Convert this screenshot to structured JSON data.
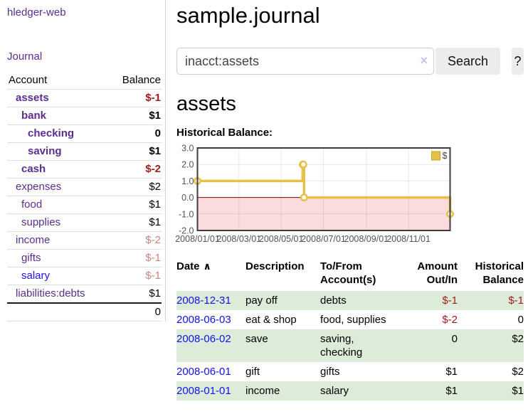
{
  "app": {
    "brand": "hledger-web",
    "nav_journal": "Journal"
  },
  "header": {
    "title": "sample.journal"
  },
  "search": {
    "value": "inacct:assets",
    "clear_icon": "×",
    "button_label": "Search",
    "help_label": "?"
  },
  "main": {
    "account_heading": "assets",
    "chart_label": "Historical Balance:"
  },
  "colors": {
    "link_purple": "#5b2d90",
    "link_blue": "#1212e6",
    "negative_red": "#a11c1c",
    "negative_soft_red": "#c98484",
    "row_stripe_green": "#ddecd9",
    "chart_line_gold": "#e6c149",
    "chart_negative_pink": "#fbdcdc",
    "chart_zero_line": "#8b0000"
  },
  "sidebar": {
    "accounts": {
      "headers": {
        "account": "Account",
        "balance": "Balance"
      },
      "rows": [
        {
          "name": "assets",
          "depth_class": "d1",
          "balance": "$-1",
          "emphasis": true,
          "negative": true
        },
        {
          "name": "bank",
          "depth_class": "d2",
          "balance": "$1",
          "emphasis": true
        },
        {
          "name": "checking",
          "depth_class": "d3",
          "balance": "0",
          "emphasis": true
        },
        {
          "name": "saving",
          "depth_class": "d3",
          "balance": "$1",
          "emphasis": true
        },
        {
          "name": "cash",
          "depth_class": "d2",
          "balance": "$-2",
          "emphasis": true,
          "negative": true
        },
        {
          "name": "expenses",
          "depth_class": "d1",
          "balance": "$2"
        },
        {
          "name": "food",
          "depth_class": "d2",
          "balance": "$1"
        },
        {
          "name": "supplies",
          "depth_class": "d2",
          "balance": "$1"
        },
        {
          "name": "income",
          "depth_class": "d1",
          "balance": "$-2",
          "negative_soft": true
        },
        {
          "name": "gifts",
          "depth_class": "d2",
          "balance": "$-1",
          "negative_soft": true
        },
        {
          "name": "salary",
          "depth_class": "d2",
          "balance": "$-1",
          "negative_soft": true,
          "unvisited": true
        },
        {
          "name": "liabilities:debts",
          "depth_class": "d1",
          "balance": "$1"
        }
      ],
      "total": "0"
    }
  },
  "chart_data": {
    "type": "line",
    "title": "Historical Balance:",
    "step": true,
    "series": [
      {
        "name": "$",
        "color": "#e6c149",
        "points": [
          [
            "2008-01-01",
            1
          ],
          [
            "2008-06-01",
            2
          ],
          [
            "2008-06-02",
            2
          ],
          [
            "2008-06-03",
            0
          ],
          [
            "2008-12-31",
            -1
          ]
        ]
      }
    ],
    "x_range": [
      "2008-01-01",
      "2008-12-31"
    ],
    "ylim": [
      -2,
      3
    ],
    "yticks": [
      "3.0",
      "2.0",
      "1.0",
      "0.0",
      "-1.0",
      "-2.0"
    ],
    "xticks": [
      {
        "label": "2008/01/01",
        "date": "2008-01-01"
      },
      {
        "label": "2008/03/01",
        "date": "2008-03-01"
      },
      {
        "label": "2008/05/01",
        "date": "2008-05-01"
      },
      {
        "label": "2008/07/01",
        "date": "2008-07-01"
      },
      {
        "label": "2008/09/01",
        "date": "2008-09-01"
      },
      {
        "label": "2008/11/01",
        "date": "2008-11-01"
      }
    ],
    "grid": true,
    "legend": {
      "label": "$",
      "position": "top-right"
    },
    "negative_region_fill": "#fbdcdc",
    "zero_line_color": "#8b0000"
  },
  "register": {
    "sort_icon": "∧",
    "headers": {
      "date": "Date",
      "description": "Description",
      "tofrom1": "To/From",
      "tofrom2": "Account(s)",
      "amount1": "Amount",
      "amount2": "Out/In",
      "balance1": "Historical",
      "balance2": "Balance"
    },
    "rows": [
      {
        "date": "2008-12-31",
        "description": "pay off",
        "accounts": "debts",
        "amount": "$-1",
        "amount_negative": true,
        "balance": "$-1",
        "balance_negative": true
      },
      {
        "date": "2008-06-03",
        "description": "eat & shop",
        "accounts": "food, supplies",
        "amount": "$-2",
        "amount_negative": true,
        "balance": "0"
      },
      {
        "date": "2008-06-02",
        "description": "save",
        "accounts": "saving, checking",
        "amount": "0",
        "balance": "$2"
      },
      {
        "date": "2008-06-01",
        "description": "gift",
        "accounts": "gifts",
        "amount": "$1",
        "balance": "$2"
      },
      {
        "date": "2008-01-01",
        "description": "income",
        "accounts": "salary",
        "amount": "$1",
        "balance": "$1"
      }
    ]
  }
}
